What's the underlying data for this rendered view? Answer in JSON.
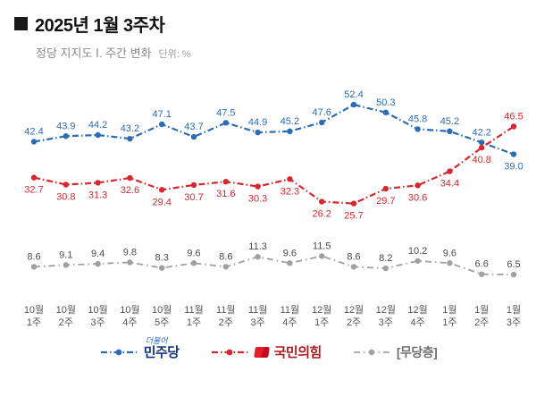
{
  "header": {
    "title": "2025년 1월 3주차",
    "subtitle": "정당 지지도 Ⅰ. 주간 변화",
    "unit": "단위: %"
  },
  "chart_data": {
    "type": "line",
    "title": "정당 지지도 주간 변화",
    "unit": "%",
    "grid": false,
    "legend_position": "bottom",
    "ylim": [
      0,
      60
    ],
    "categories": [
      "10월 1주",
      "10월 2주",
      "10월 3주",
      "10월 4주",
      "10월 5주",
      "11월 1주",
      "11월 2주",
      "11월 3주",
      "11월 4주",
      "12월 1주",
      "12월 2주",
      "12월 3주",
      "12월 4주",
      "1월 1주",
      "1월 2주",
      "1월 3주"
    ],
    "series": [
      {
        "name": "민주당",
        "color": "#2c6cb5",
        "label_color": "#2c6cb5",
        "dash": "7 3 1.5 3",
        "stroke_width": 2.2,
        "label_default": "above",
        "label_overrides": {
          "15": "below"
        },
        "values": [
          42.4,
          43.9,
          44.2,
          43.2,
          47.1,
          43.7,
          47.5,
          44.9,
          45.2,
          47.6,
          52.4,
          50.3,
          45.8,
          45.2,
          42.2,
          39.0
        ]
      },
      {
        "name": "국민의힘",
        "color": "#d6272e",
        "label_color": "#d6272e",
        "dash": "7 3 1.5 3",
        "stroke_width": 2.2,
        "label_default": "below",
        "label_overrides": {
          "15": "above"
        },
        "values": [
          32.7,
          30.8,
          31.3,
          32.6,
          29.4,
          30.7,
          31.6,
          30.3,
          32.3,
          26.2,
          25.7,
          29.7,
          30.6,
          34.4,
          40.8,
          46.5
        ]
      },
      {
        "name": "[무당층]",
        "color": "#a0a0a0",
        "label_color": "#4a4a4a",
        "dash": "7 4 1.5 4",
        "stroke_width": 1.8,
        "label_default": "above",
        "label_overrides": {},
        "values": [
          8.6,
          9.1,
          9.4,
          9.8,
          8.3,
          9.6,
          8.6,
          11.3,
          9.6,
          11.5,
          8.6,
          8.2,
          10.2,
          9.6,
          6.6,
          6.5
        ]
      }
    ]
  },
  "legend": {
    "items": [
      {
        "label": "민주당",
        "logo_text": "더불어",
        "marker_color": "#2c6cb5"
      },
      {
        "label": "국민의힘",
        "marker_color": "#d6272e"
      },
      {
        "label": "[무당층]",
        "marker_color": "#a0a0a0"
      }
    ]
  }
}
